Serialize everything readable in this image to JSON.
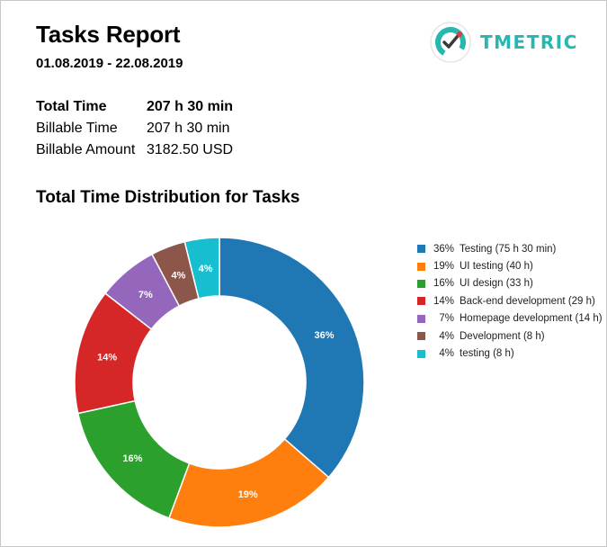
{
  "report": {
    "title": "Tasks Report",
    "period": "01.08.2019 - 22.08.2019"
  },
  "logo": {
    "name": "TMETRIC",
    "icon": "tmetric-logo-icon",
    "color": "#28b6b0"
  },
  "summary": {
    "rows": [
      {
        "label": "Total Time",
        "value": "207 h 30 min",
        "bold": true
      },
      {
        "label": "Billable Time",
        "value": "207 h 30 min",
        "bold": false
      },
      {
        "label": "Billable Amount",
        "value": "3182.50 USD",
        "bold": false
      }
    ]
  },
  "section_title": "Total Time Distribution for Tasks",
  "chart_data": {
    "type": "pie",
    "donut": true,
    "legend_position": "right",
    "slices": [
      {
        "name": "Testing",
        "duration": "75 h 30 min",
        "percent": 36,
        "hours": 75.5,
        "color": "#1f77b4",
        "label": "36%"
      },
      {
        "name": "UI testing",
        "duration": "40 h",
        "percent": 19,
        "hours": 40,
        "color": "#ff7f0e",
        "label": "19%"
      },
      {
        "name": "UI design",
        "duration": "33 h",
        "percent": 16,
        "hours": 33,
        "color": "#2ca02c",
        "label": "16%"
      },
      {
        "name": "Back-end development",
        "duration": "29 h",
        "percent": 14,
        "hours": 29,
        "color": "#d62728",
        "label": "14%"
      },
      {
        "name": "Homepage development",
        "duration": "14 h",
        "percent": 7,
        "hours": 14,
        "color": "#9467bd",
        "label": "7%"
      },
      {
        "name": "Development",
        "duration": "8 h",
        "percent": 4,
        "hours": 8,
        "color": "#8c564b",
        "label": "4%"
      },
      {
        "name": "testing",
        "duration": "8 h",
        "percent": 4,
        "hours": 8,
        "color": "#17becf",
        "label": "4%"
      }
    ]
  }
}
